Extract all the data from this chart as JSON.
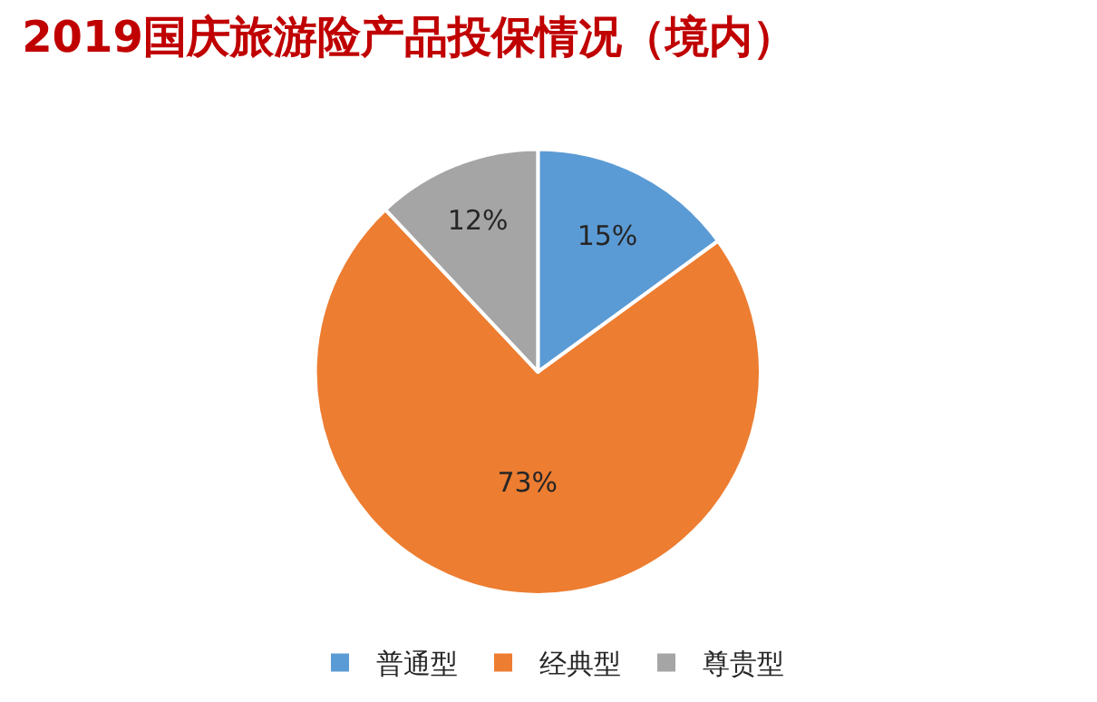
{
  "chart_data": {
    "type": "pie",
    "title": "2019国庆旅游险产品投保情况（境内）",
    "categories": [
      "普通型",
      "经典型",
      "尊贵型"
    ],
    "values": [
      15,
      73,
      12
    ],
    "colors": [
      "#5b9bd5",
      "#ed7d31",
      "#a5a5a5"
    ],
    "value_labels": [
      "15%",
      "73%",
      "12%"
    ],
    "legend": "bottom"
  }
}
